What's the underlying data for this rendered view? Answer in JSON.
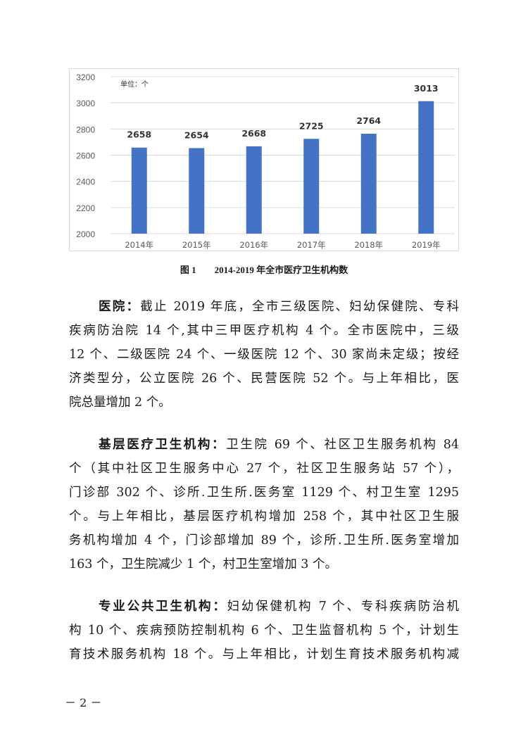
{
  "chart_data": {
    "type": "bar",
    "categories": [
      "2014年",
      "2015年",
      "2016年",
      "2017年",
      "2018年",
      "2019年"
    ],
    "values": [
      2658,
      2654,
      2668,
      2725,
      2764,
      3013
    ],
    "unit_label": "单位：个",
    "ylim": [
      2000,
      3200
    ],
    "yticks": [
      2000,
      2200,
      2400,
      2600,
      2800,
      3000,
      3200
    ],
    "grid": true,
    "bar_color": "#4472c4",
    "title": ""
  },
  "caption": {
    "number": "图 1",
    "text": "2014-2019 年全市医疗卫生机构数"
  },
  "paragraphs": [
    {
      "lead": "医院：",
      "lines": [
        "截止 2019 年底，全市三级医院、妇幼保健院、专科",
        "疾病防治院 14 个,其中三甲医疗机构 4 个。全市医院中，三级",
        "12 个、二级医院 24 个、一级医院 12 个、30 家尚未定级；按经",
        "济类型分，公立医院 26 个、民营医院 52 个。与上年相比，医",
        "院总量增加 2 个。"
      ]
    },
    {
      "lead": "基层医疗卫生机构：",
      "lines": [
        "卫生院 69 个、社区卫生服务机构 84",
        "个（其中社区卫生服务中心 27 个，社区卫生服务站 57 个），",
        "门诊部 302 个、诊所.卫生所.医务室 1129 个、村卫生室 1295",
        "个。与上年相比，基层医疗机构增加 258 个，其中社区卫生服",
        "务机构增加 4 个，门诊部增加 89 个，诊所.卫生所.医务室增加",
        "163 个，卫生院减少 1 个，村卫生室增加 3 个。"
      ]
    },
    {
      "lead": "专业公共卫生机构：",
      "lines": [
        "妇幼保健机构 7 个、专科疾病防治机",
        "构 10 个、疾病预防控制机构 6 个、卫生监督机构 5 个，计划生",
        "育技术服务机构 18 个。与上年相比，计划生育技术服务机构减"
      ]
    }
  ],
  "page_number": "－ 2 －"
}
